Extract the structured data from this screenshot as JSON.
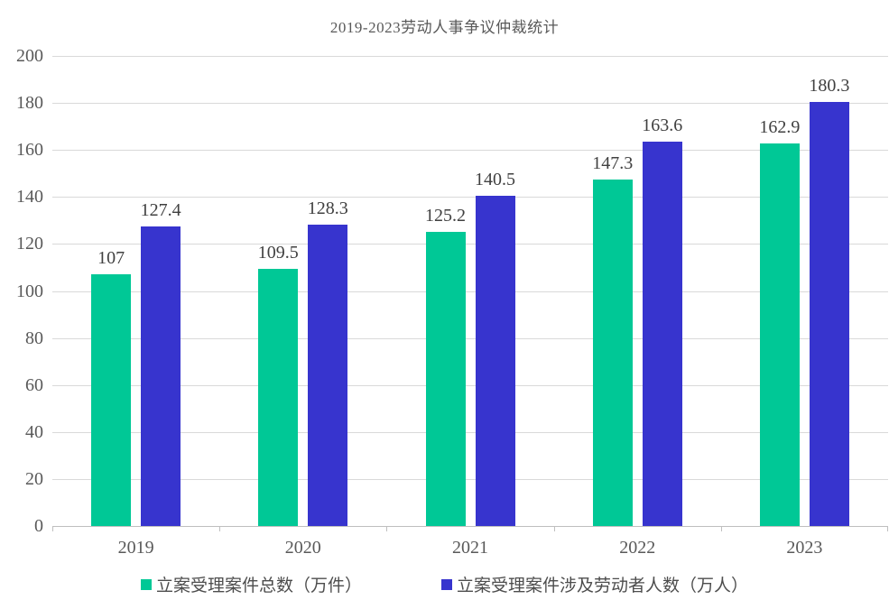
{
  "page": {
    "background": "#ffffff"
  },
  "chart_data": {
    "type": "bar",
    "title": "2019-2023劳动人事争议仲裁统计",
    "categories": [
      "2019",
      "2020",
      "2021",
      "2022",
      "2023"
    ],
    "series": [
      {
        "name": "立案受理案件总数（万件）",
        "color": "#00C896",
        "values": [
          107,
          109.5,
          125.2,
          147.3,
          162.9
        ]
      },
      {
        "name": "立案受理案件涉及劳动者人数（万人）",
        "color": "#3734CE",
        "values": [
          127.4,
          128.3,
          140.5,
          163.6,
          180.3
        ]
      }
    ],
    "ylim": [
      0,
      200
    ],
    "ytick_step": 20,
    "ytick_labels": [
      "0",
      "20",
      "40",
      "60",
      "80",
      "100",
      "120",
      "140",
      "160",
      "180",
      "200"
    ],
    "grid": true,
    "grid_color": "#D9D9D9",
    "axis_color": "#BFBFBF",
    "value_label_color": "#404040",
    "tick_label_color": "#595959",
    "legend_position": "bottom"
  }
}
